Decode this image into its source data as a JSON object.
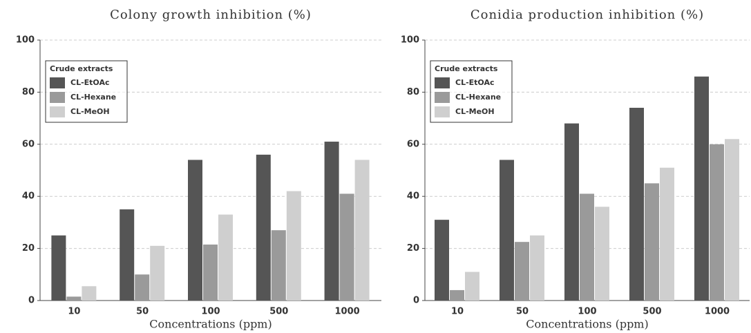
{
  "chart_data": [
    {
      "type": "bar",
      "title": "Colony growth inhibition (%)",
      "x_label": "Concentrations (ppm)",
      "categories": [
        "10",
        "50",
        "100",
        "500",
        "1000"
      ],
      "legend_title": "Crude extracts",
      "legend": "upper left",
      "grid": true,
      "ylim": [
        0,
        100
      ],
      "yticks": [
        0,
        20,
        40,
        60,
        80,
        100
      ],
      "series": [
        {
          "name": "CL-EtOAc",
          "color": "#555555",
          "values": [
            25,
            35,
            54,
            56,
            61
          ]
        },
        {
          "name": "CL-Hexane",
          "color": "#9a9a9a",
          "values": [
            1.5,
            10,
            21.5,
            27,
            41
          ]
        },
        {
          "name": "CL-MeOH",
          "color": "#cfcfcf",
          "values": [
            5.5,
            21,
            33,
            42,
            54
          ]
        }
      ]
    },
    {
      "type": "bar",
      "title": "Conidia production inhibition (%)",
      "x_label": "Concentrations (ppm)",
      "categories": [
        "10",
        "50",
        "100",
        "500",
        "1000"
      ],
      "legend_title": "Crude extracts",
      "legend": "upper left",
      "grid": true,
      "ylim": [
        0,
        100
      ],
      "yticks": [
        0,
        20,
        40,
        60,
        80,
        100
      ],
      "series": [
        {
          "name": "CL-EtOAc",
          "color": "#555555",
          "values": [
            31,
            54,
            68,
            74,
            86
          ]
        },
        {
          "name": "CL-Hexane",
          "color": "#9a9a9a",
          "values": [
            4,
            22.5,
            41,
            45,
            60
          ]
        },
        {
          "name": "CL-MeOH",
          "color": "#cfcfcf",
          "values": [
            11,
            25,
            36,
            51,
            62
          ]
        }
      ]
    }
  ]
}
